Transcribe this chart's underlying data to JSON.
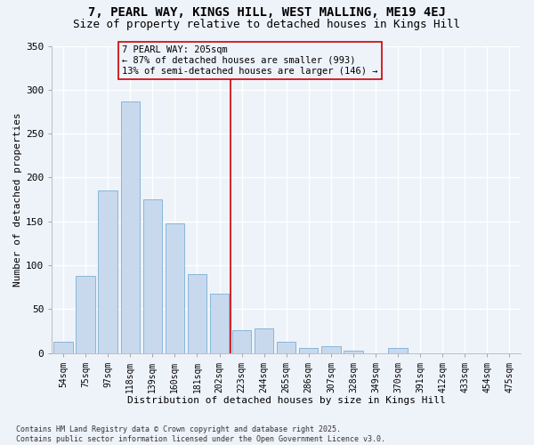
{
  "title_line1": "7, PEARL WAY, KINGS HILL, WEST MALLING, ME19 4EJ",
  "title_line2": "Size of property relative to detached houses in Kings Hill",
  "xlabel": "Distribution of detached houses by size in Kings Hill",
  "ylabel": "Number of detached properties",
  "bar_color": "#c9d9ed",
  "bar_edge_color": "#7bafd4",
  "categories": [
    "54sqm",
    "75sqm",
    "97sqm",
    "118sqm",
    "139sqm",
    "160sqm",
    "181sqm",
    "202sqm",
    "223sqm",
    "244sqm",
    "265sqm",
    "286sqm",
    "307sqm",
    "328sqm",
    "349sqm",
    "370sqm",
    "391sqm",
    "412sqm",
    "433sqm",
    "454sqm",
    "475sqm"
  ],
  "values": [
    13,
    88,
    185,
    287,
    175,
    148,
    90,
    68,
    26,
    28,
    13,
    6,
    8,
    3,
    0,
    6,
    0,
    0,
    0,
    0,
    0
  ],
  "vline_index": 7.5,
  "vline_color": "#cc0000",
  "annotation_text": "7 PEARL WAY: 205sqm\n← 87% of detached houses are smaller (993)\n13% of semi-detached houses are larger (146) →",
  "background_color": "#eef2f9",
  "grid_color": "#ffffff",
  "ylim": [
    0,
    350
  ],
  "yticks": [
    0,
    50,
    100,
    150,
    200,
    250,
    300,
    350
  ],
  "footnote": "Contains HM Land Registry data © Crown copyright and database right 2025.\nContains public sector information licensed under the Open Government Licence v3.0.",
  "title_fontsize": 10,
  "subtitle_fontsize": 9,
  "annotation_fontsize": 7.5
}
